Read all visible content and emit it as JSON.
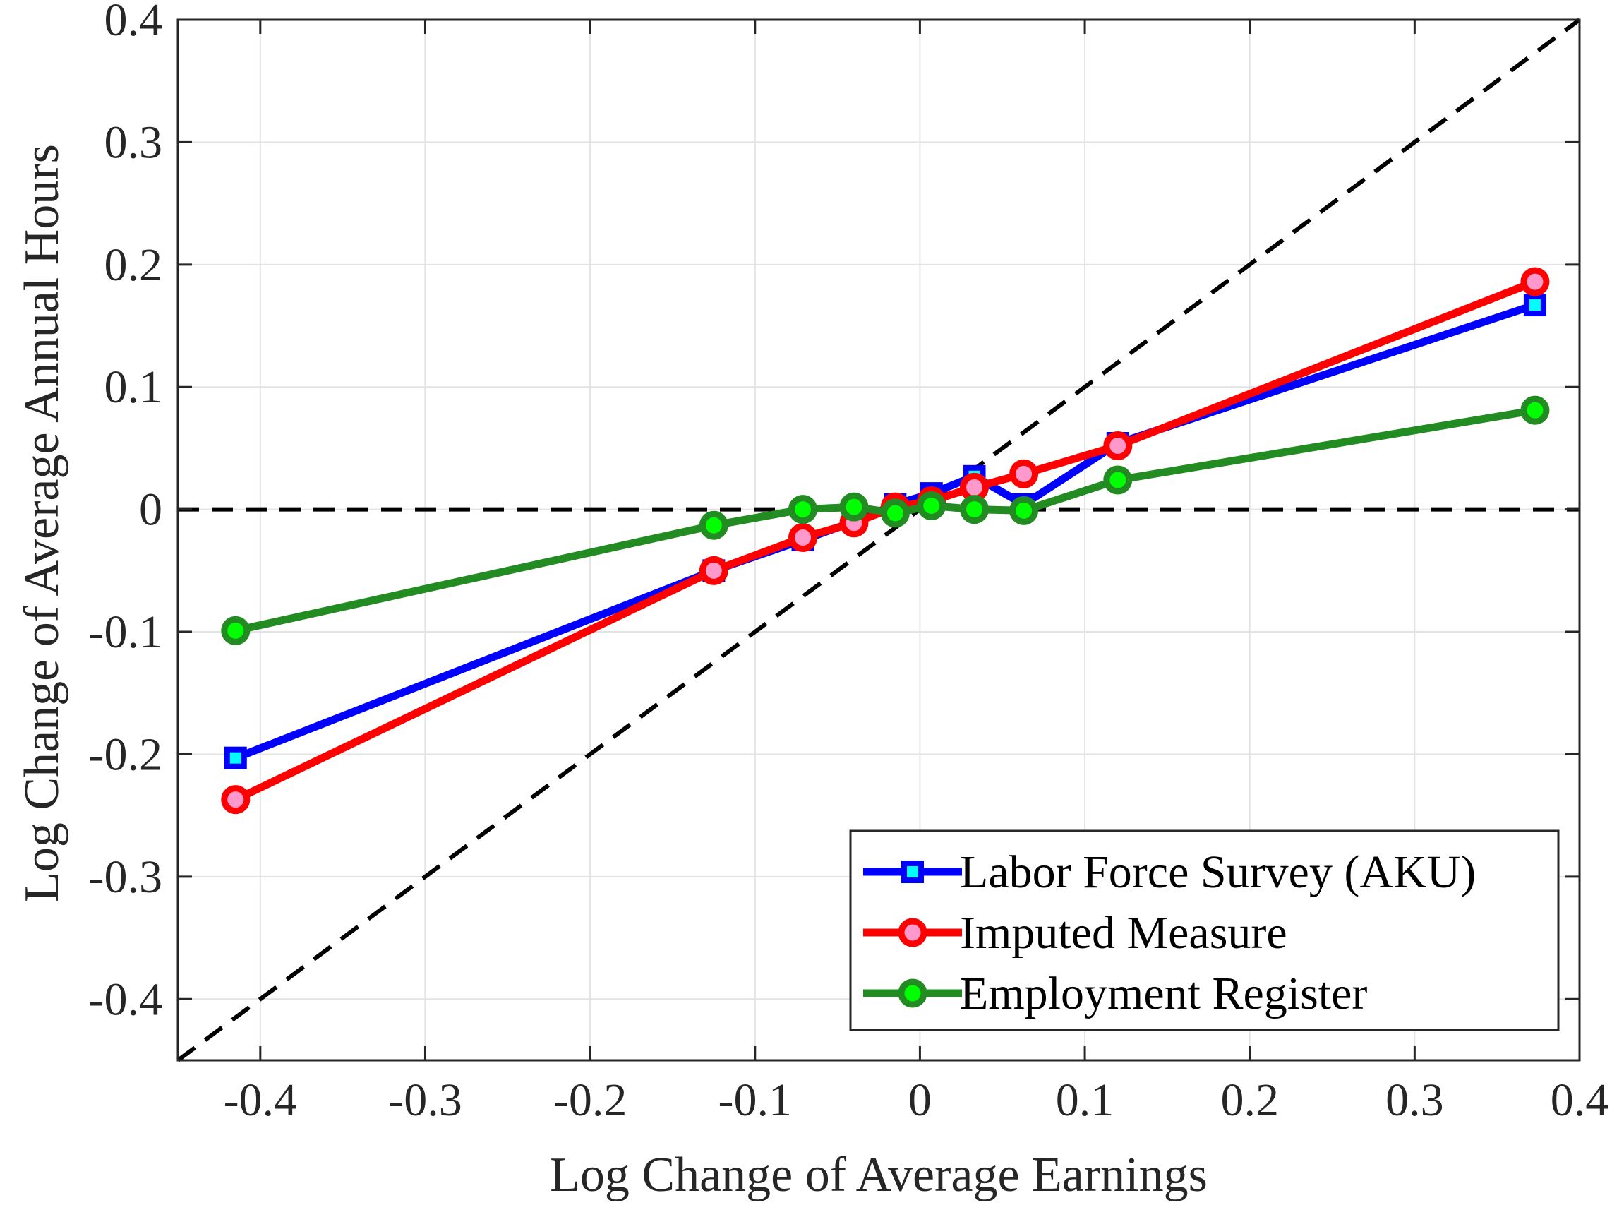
{
  "chart_data": {
    "type": "line",
    "title": "",
    "xlabel": "Log Change of Average Earnings",
    "ylabel": "Log Change of Average Annual Hours",
    "xlim": [
      -0.45,
      0.4
    ],
    "ylim": [
      -0.45,
      0.4
    ],
    "xticks": [
      -0.4,
      -0.3,
      -0.2,
      -0.1,
      0,
      0.1,
      0.2,
      0.3,
      0.4
    ],
    "yticks": [
      -0.4,
      -0.3,
      -0.2,
      -0.1,
      0,
      0.1,
      0.2,
      0.3,
      0.4
    ],
    "xtick_labels": [
      "-0.4",
      "-0.3",
      "-0.2",
      "-0.1",
      "0",
      "0.1",
      "0.2",
      "0.3",
      "0.4"
    ],
    "ytick_labels": [
      "-0.4",
      "-0.3",
      "-0.2",
      "-0.1",
      "0",
      "0.1",
      "0.2",
      "0.3",
      "0.4"
    ],
    "grid": true,
    "legend_position": "bottom-right",
    "reference_lines": [
      {
        "name": "45-degree line",
        "style": "dashed",
        "color": "#000000",
        "points": [
          [
            -0.45,
            -0.45
          ],
          [
            0.4,
            0.4
          ]
        ]
      },
      {
        "name": "zero line",
        "style": "dashed",
        "color": "#000000",
        "points": [
          [
            -0.45,
            0
          ],
          [
            0.4,
            0
          ]
        ]
      }
    ],
    "series": [
      {
        "name": "Labor Force Survey (AKU)",
        "color": "#0000ff",
        "marker": "square",
        "marker_face": "#00ffff",
        "x": [
          -0.415,
          -0.125,
          -0.071,
          -0.04,
          -0.015,
          0.007,
          0.033,
          0.063,
          0.12,
          0.373
        ],
        "y": [
          -0.203,
          -0.05,
          -0.025,
          -0.01,
          0.004,
          0.013,
          0.027,
          0.004,
          0.054,
          0.167
        ]
      },
      {
        "name": "Imputed Measure",
        "color": "#ff0000",
        "marker": "circle",
        "marker_face": "#ff99cc",
        "x": [
          -0.415,
          -0.125,
          -0.071,
          -0.04,
          -0.015,
          0.007,
          0.033,
          0.063,
          0.12,
          0.373
        ],
        "y": [
          -0.237,
          -0.05,
          -0.023,
          -0.011,
          0.002,
          0.007,
          0.018,
          0.029,
          0.052,
          0.186
        ]
      },
      {
        "name": "Employment Register",
        "color": "#228b22",
        "marker": "circle",
        "marker_face": "#00ff00",
        "x": [
          -0.415,
          -0.125,
          -0.071,
          -0.04,
          -0.015,
          0.007,
          0.033,
          0.063,
          0.12,
          0.373
        ],
        "y": [
          -0.099,
          -0.013,
          0.0,
          0.002,
          -0.003,
          0.003,
          0.0,
          -0.001,
          0.024,
          0.081
        ]
      }
    ]
  }
}
